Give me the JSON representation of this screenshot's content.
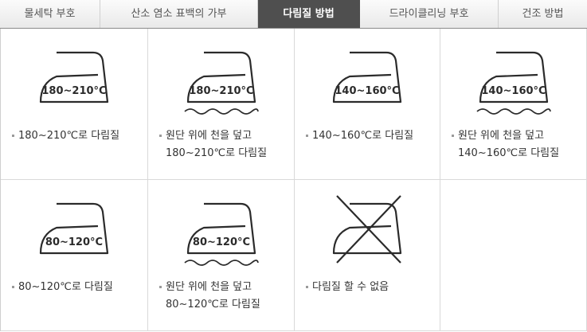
{
  "tabs": [
    {
      "label": "물세탁 부호",
      "active": false
    },
    {
      "label": "산소 염소 표백의 가부",
      "active": false
    },
    {
      "label": "다림질 방법",
      "active": true
    },
    {
      "label": "드라이클리닝 부호",
      "active": false
    },
    {
      "label": "건조 방법",
      "active": false
    }
  ],
  "cells": [
    {
      "icon": "iron-icon",
      "temp": "180~210°C",
      "cloth": false,
      "crossed": false,
      "desc": [
        "180~210℃로 다림질"
      ]
    },
    {
      "icon": "iron-cloth-icon",
      "temp": "180~210°C",
      "cloth": true,
      "crossed": false,
      "desc": [
        "원단 위에 천을 덮고",
        "180~210℃로 다림질"
      ]
    },
    {
      "icon": "iron-icon",
      "temp": "140~160°C",
      "cloth": false,
      "crossed": false,
      "desc": [
        "140~160℃로 다림질"
      ]
    },
    {
      "icon": "iron-cloth-icon",
      "temp": "140~160°C",
      "cloth": true,
      "crossed": false,
      "desc": [
        "원단 위에 천을 덮고",
        "140~160℃로 다림질"
      ]
    },
    {
      "icon": "iron-icon",
      "temp": "80~120°C",
      "cloth": false,
      "crossed": false,
      "desc": [
        "80~120℃로 다림질"
      ]
    },
    {
      "icon": "iron-cloth-icon",
      "temp": "80~120°C",
      "cloth": true,
      "crossed": false,
      "desc": [
        "원단 위에 천을 덮고",
        "80~120℃로 다림질"
      ]
    },
    {
      "icon": "no-iron-icon",
      "temp": "",
      "cloth": false,
      "crossed": true,
      "desc": [
        "다림질 할 수 없음"
      ]
    }
  ]
}
